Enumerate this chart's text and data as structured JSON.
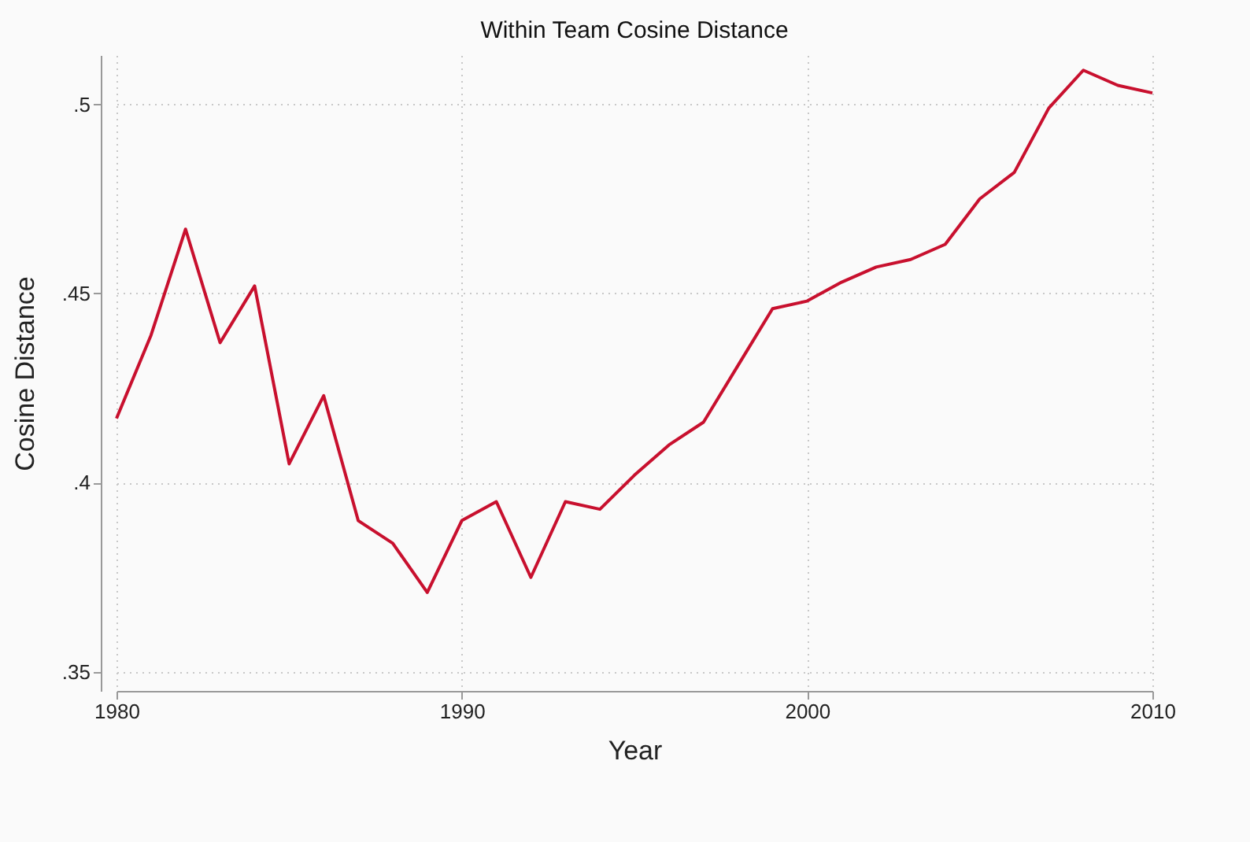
{
  "chart_data": {
    "type": "line",
    "title": "Within  Team Cosine Distance",
    "xlabel": "Year",
    "ylabel": "Cosine Distance",
    "x": [
      1980,
      1981,
      1982,
      1983,
      1984,
      1985,
      1986,
      1987,
      1988,
      1989,
      1990,
      1991,
      1992,
      1993,
      1994,
      1995,
      1996,
      1997,
      1998,
      1999,
      2000,
      2001,
      2002,
      2003,
      2004,
      2005,
      2006,
      2007,
      2008,
      2009,
      2010
    ],
    "series": [
      {
        "color": "#c8102e",
        "values": [
          0.417,
          0.439,
          0.467,
          0.437,
          0.452,
          0.405,
          0.423,
          0.39,
          0.384,
          0.371,
          0.39,
          0.395,
          0.375,
          0.395,
          0.393,
          0.402,
          0.41,
          0.416,
          0.431,
          0.446,
          0.448,
          0.453,
          0.457,
          0.459,
          0.463,
          0.475,
          0.482,
          0.499,
          0.509,
          0.505,
          0.503
        ]
      }
    ],
    "xlim": [
      1980,
      2010
    ],
    "xticks": [
      1980,
      1990,
      2000,
      2010
    ],
    "ylim": [
      0.345,
      0.513
    ],
    "yticks": [
      {
        "value": 0.35,
        "label": ".35"
      },
      {
        "value": 0.4,
        "label": ".4"
      },
      {
        "value": 0.45,
        "label": ".45"
      },
      {
        "value": 0.5,
        "label": ".5"
      }
    ],
    "grid": true,
    "marker": "none",
    "line_style": "solid"
  }
}
